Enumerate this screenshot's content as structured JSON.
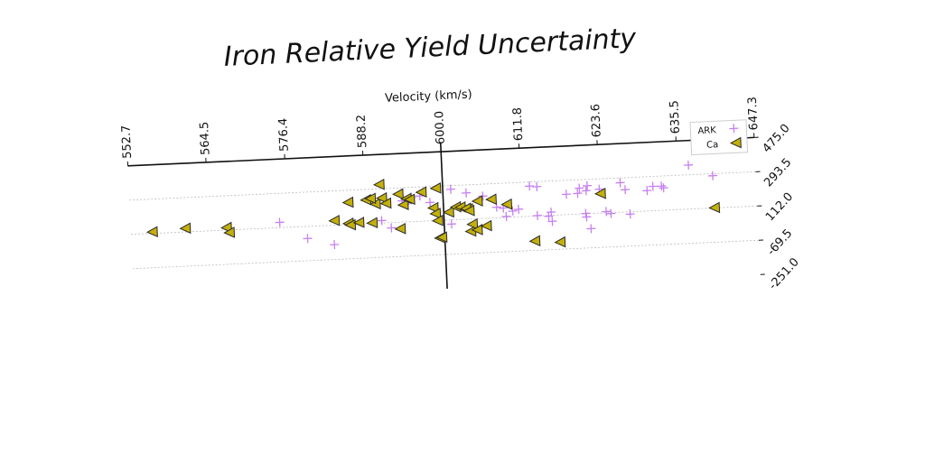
{
  "chart_data": {
    "type": "scatter",
    "title": "Iron Relative Yield Uncertainty",
    "xlabel": "Velocity (km/s)",
    "ylabel": "",
    "x_ticks": [
      "552.7",
      "564.5",
      "576.4",
      "588.2",
      "600.0",
      "611.8",
      "623.6",
      "635.5",
      "647.3"
    ],
    "y_ticks": [
      "475.0",
      "293.5",
      "112.0",
      "-69.5",
      "-251.0"
    ],
    "xlim": [
      552.7,
      647.3
    ],
    "ylim": [
      -251.0,
      475.0
    ],
    "reference_line_x": 600.0,
    "grid": "dotted, horizontal",
    "legend_position": "top-right",
    "series": [
      {
        "name": "ARK",
        "marker": "plus",
        "color": "#c77ff0",
        "points": [
          [
            575.2,
            140
          ],
          [
            579.3,
            48
          ],
          [
            583.3,
            9
          ],
          [
            592.0,
            84
          ],
          [
            590.6,
            125
          ],
          [
            593.8,
            225
          ],
          [
            594.8,
            225
          ],
          [
            595.2,
            242
          ],
          [
            596.5,
            246
          ],
          [
            598.0,
            209
          ],
          [
            601.2,
            274
          ],
          [
            603.5,
            251
          ],
          [
            601.1,
            90
          ],
          [
            606.0,
            230
          ],
          [
            608.0,
            168
          ],
          [
            609.0,
            162
          ],
          [
            609.4,
            117
          ],
          [
            610.4,
            144
          ],
          [
            611.3,
            152
          ],
          [
            613.1,
            272
          ],
          [
            614.2,
            267
          ],
          [
            614.1,
            114
          ],
          [
            615.8,
            108
          ],
          [
            616.2,
            129
          ],
          [
            616.3,
            80
          ],
          [
            618.6,
            220
          ],
          [
            620.3,
            222
          ],
          [
            620.6,
            249
          ],
          [
            621.8,
            260
          ],
          [
            621.4,
            114
          ],
          [
            621.5,
            95
          ],
          [
            621.6,
            234
          ],
          [
            622.1,
            32
          ],
          [
            623.6,
            239
          ],
          [
            624.5,
            119
          ],
          [
            625.2,
            107
          ],
          [
            626.8,
            268
          ],
          [
            627.5,
            230
          ],
          [
            628.1,
            100
          ],
          [
            630.8,
            220
          ],
          [
            631.7,
            241
          ],
          [
            633.0,
            240
          ],
          [
            633.3,
            230
          ],
          [
            637.2,
            345
          ],
          [
            640.8,
            283
          ]
        ]
      },
      {
        "name": "Ca",
        "marker": "triangle-left",
        "color": "#c4b00c",
        "points": [
          [
            556.0,
            120
          ],
          [
            561.0,
            131
          ],
          [
            567.2,
            125
          ],
          [
            567.6,
            98
          ],
          [
            583.5,
            136
          ],
          [
            585.6,
            118
          ],
          [
            585.7,
            229
          ],
          [
            585.9,
            109
          ],
          [
            587.2,
            120
          ],
          [
            588.4,
            238
          ],
          [
            589.8,
            214
          ],
          [
            589.2,
            115
          ],
          [
            589.1,
            244
          ],
          [
            590.5,
            316
          ],
          [
            590.8,
            244
          ],
          [
            591.4,
            215
          ],
          [
            593.3,
            261
          ],
          [
            593.4,
            77
          ],
          [
            594.0,
            203
          ],
          [
            594.5,
            235
          ],
          [
            595.0,
            230
          ],
          [
            596.8,
            266
          ],
          [
            598.5,
            180
          ],
          [
            598.8,
            149
          ],
          [
            599.0,
            283
          ],
          [
            599.1,
            111
          ],
          [
            599.3,
            19
          ],
          [
            599.6,
            22
          ],
          [
            600.8,
            153
          ],
          [
            601.9,
            179
          ],
          [
            602.6,
            177
          ],
          [
            603.7,
            165
          ],
          [
            603.4,
            169
          ],
          [
            603.9,
            156
          ],
          [
            604.0,
            47
          ],
          [
            604.3,
            84
          ],
          [
            605.0,
            53
          ],
          [
            605.2,
            205
          ],
          [
            606.4,
            72
          ],
          [
            607.3,
            211
          ],
          [
            609.6,
            181
          ],
          [
            613.6,
            -20
          ],
          [
            617.4,
            -32
          ],
          [
            623.8,
            215
          ],
          [
            640.9,
            113
          ]
        ]
      }
    ]
  }
}
